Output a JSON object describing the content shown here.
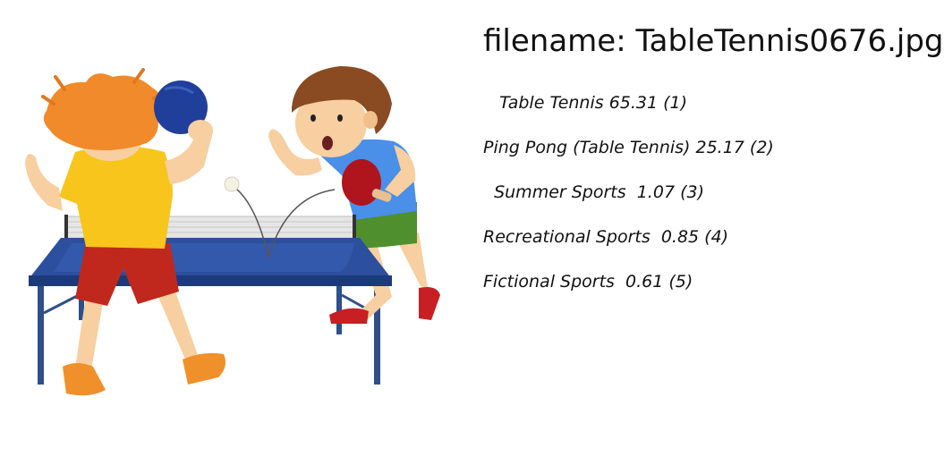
{
  "header": {
    "filename_text": "filename: TableTennis0676.jpg"
  },
  "predictions": [
    {
      "text": "   Table Tennis 65.31 (1)"
    },
    {
      "text": "Ping Pong (Table Tennis) 25.17 (2)"
    },
    {
      "text": "  Summer Sports  1.07 (3)"
    },
    {
      "text": "Recreational Sports  0.85 (4)"
    },
    {
      "text": "Fictional Sports  0.61 (5)"
    }
  ],
  "image": {
    "icon": "table-tennis-illustration",
    "colors": {
      "table_top": "#2c4f9e",
      "table_edge": "#1c3a7a",
      "net": "#d8d8d8",
      "left_shirt": "#f7c51c",
      "left_shorts": "#c0281e",
      "left_hair": "#f08a2a",
      "left_paddle": "#1f3f9a",
      "right_shirt": "#4a8fe8",
      "right_shorts": "#4f8f2e",
      "right_hair": "#8a4a22",
      "right_paddle": "#b0141c",
      "skin": "#f7cfa0",
      "shoes_left": "#f0902a",
      "shoes_right": "#c81f24"
    }
  }
}
